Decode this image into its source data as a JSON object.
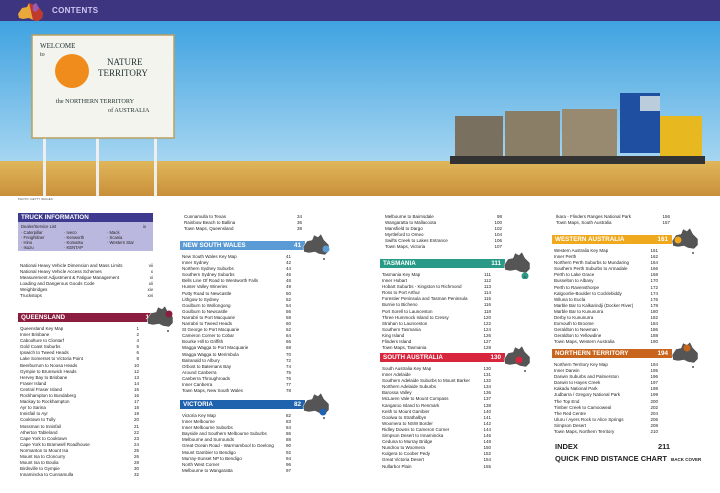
{
  "header": {
    "title": "CONTENTS",
    "bar_color": "#3d3580"
  },
  "photo": {
    "caption": "PHOTO: GETTY IMAGES",
    "sign": {
      "line1": "WELCOME",
      "line2": "to",
      "line3": "NATURE",
      "line4": "TERRITORY",
      "line5": "the NORTHERN TERRITORY",
      "line6": "of AUSTRALIA"
    }
  },
  "truck_info": {
    "title": "TRUCK INFORMATION",
    "color": "#3e3a8f",
    "dealer_label": "Dealer/Service List",
    "dealer_page": "ix",
    "brands": [
      [
        "Caterpillar",
        "Freightliner",
        "Hino",
        "Isuzu"
      ],
      [
        "Iveco",
        "Kenworth",
        "Komatsu",
        "KENTAP"
      ],
      [
        "Mack",
        "Scania",
        "Western Star"
      ]
    ],
    "items": [
      [
        "National Heavy Vehicle Dimension and Mass Limits",
        "vii"
      ],
      [
        "National Heavy Vehicle Access Schemes",
        "x"
      ],
      [
        "Measurement Adjustment & Fatigue Management",
        "xi"
      ],
      [
        "Loading and Dangerous Goods Code",
        "xii"
      ],
      [
        "Weighbridges",
        "xiv"
      ],
      [
        "Truckstops",
        "xvi"
      ]
    ]
  },
  "sections": {
    "qld": {
      "title": "QUEENSLAND",
      "page": "1",
      "color": "#8b1d3f",
      "items": [
        [
          "Queensland Key Map",
          "1"
        ],
        [
          "Inner Brisbane",
          "2"
        ],
        [
          "Caboolture to Clontarf",
          "4"
        ],
        [
          "Gold Coast Suburbs",
          "5"
        ],
        [
          "Ipswich to Tweed Heads",
          "6"
        ],
        [
          "Lake Somerset to Victoria Point",
          "8"
        ],
        [
          "Beerburrum to Noosa Heads",
          "10"
        ],
        [
          "Gympie to Brunswick Heads",
          "12"
        ],
        [
          "Hervey Bay to Brisbane",
          "13"
        ],
        [
          "Fraser Island",
          "14"
        ],
        [
          "Central Fraser Island",
          "15"
        ],
        [
          "Rockhampton to Bundaberg",
          "16"
        ],
        [
          "Mackay to Rockhampton",
          "17"
        ],
        [
          "Ayr to Sarina",
          "18"
        ],
        [
          "Innisfail to Ayr",
          "19"
        ],
        [
          "Cooktown to Tully",
          "20"
        ],
        [
          "Mossman to Innisfail",
          "21"
        ],
        [
          "Atherton Tableland",
          "22"
        ],
        [
          "Cape York to Cooktown",
          "23"
        ],
        [
          "Cape York to Bramwell Roadhouse",
          "24"
        ],
        [
          "Normanton to Mount Isa",
          "25"
        ],
        [
          "Mount Isa to Cloncurry",
          "26"
        ],
        [
          "Mount Isa to Boulia",
          "28"
        ],
        [
          "Birdsville to Gympie",
          "30"
        ],
        [
          "Innamincka to Cunnamulla",
          "32"
        ]
      ]
    },
    "qld_cont": {
      "items": [
        [
          "Cunnamulla to Texas",
          "34"
        ],
        [
          "Rainbow Beach to Ballina",
          "36"
        ],
        [
          "Town Maps, Queensland",
          "38"
        ]
      ]
    },
    "nsw": {
      "title": "NEW SOUTH WALES",
      "page": "41",
      "color": "#5b9bd5",
      "items": [
        [
          "New South Wales Key Map",
          "41"
        ],
        [
          "Inner Sydney",
          "42"
        ],
        [
          "Northern Sydney Suburbs",
          "44"
        ],
        [
          "Southern Sydney Suburbs",
          "46"
        ],
        [
          "Bells Line Of Road to Wentworth Falls",
          "48"
        ],
        [
          "Hunter Valley Wineries",
          "49"
        ],
        [
          "Putty Road to Newcastle",
          "50"
        ],
        [
          "Lithgow to Sydney",
          "52"
        ],
        [
          "Goulburn to Wollongong",
          "54"
        ],
        [
          "Goulburn to Newcastle",
          "56"
        ],
        [
          "Narrabri to Port Macquarie",
          "58"
        ],
        [
          "Narrabri to Tweed Heads",
          "60"
        ],
        [
          "St George to Port Macquarie",
          "62"
        ],
        [
          "Cameron Corner to Cobar",
          "64"
        ],
        [
          "Bourke Hill to Griffith",
          "66"
        ],
        [
          "Wagga Wagga to Port Macquarie",
          "68"
        ],
        [
          "Wagga Wagga to Merimbula",
          "70"
        ],
        [
          "Balranald to Albury",
          "72"
        ],
        [
          "Orbost to Batemans Bay",
          "74"
        ],
        [
          "Around Canberra",
          "75"
        ],
        [
          "Canberra Throughroads",
          "76"
        ],
        [
          "Inner Canberra",
          "77"
        ],
        [
          "Town Maps, New South Wales",
          "78"
        ]
      ]
    },
    "vic": {
      "title": "VICTORIA",
      "page": "82",
      "color": "#1f62ad",
      "items": [
        [
          "Victoria Key Map",
          "82"
        ],
        [
          "Inner Melbourne",
          "83"
        ],
        [
          "Inner Melbourne Suburbs",
          "84"
        ],
        [
          "Bayside and Southern Melbourne Suburbs",
          "86"
        ],
        [
          "Melbourne and Surrounds",
          "88"
        ],
        [
          "Great Ocean Road - Warrnambool to Geelong",
          "90"
        ],
        [
          "Mount Gambier to Bendigo",
          "92"
        ],
        [
          "Murray-Sunset NP to Bendigo",
          "94"
        ],
        [
          "North West Corner",
          "96"
        ],
        [
          "Melbourne to Wangaratta",
          "97"
        ]
      ]
    },
    "vic_cont": {
      "items": [
        [
          "Melbourne to Bairnsdale",
          "98"
        ],
        [
          "Wangaratta to Mallacoota",
          "100"
        ],
        [
          "Mansfield to Dargo",
          "102"
        ],
        [
          "Myrtleford to Omeo",
          "104"
        ],
        [
          "Swifts Creek to Lakes Entrance",
          "106"
        ],
        [
          "Town Maps, Victoria",
          "107"
        ]
      ]
    },
    "tas": {
      "title": "TASMANIA",
      "page": "111",
      "color": "#2a9a88",
      "items": [
        [
          "Tasmania Key Map",
          "111"
        ],
        [
          "Inner Hobart",
          "112"
        ],
        [
          "Hobart Suburbs - Kingston to Richmond",
          "113"
        ],
        [
          "Ross to Port Arthur",
          "114"
        ],
        [
          "Forestier Peninsula and Tasman Peninsula",
          "115"
        ],
        [
          "Burnie to Bicheno",
          "116"
        ],
        [
          "Port Sorell to Launceston",
          "118"
        ],
        [
          "Three Hummock Island to Cressy",
          "120"
        ],
        [
          "Strahan to Launceston",
          "122"
        ],
        [
          "Southern Tasmania",
          "124"
        ],
        [
          "King Island",
          "126"
        ],
        [
          "Flinders Island",
          "127"
        ],
        [
          "Town Maps, Tasmania",
          "128"
        ]
      ]
    },
    "sa": {
      "title": "SOUTH AUSTRALIA",
      "page": "130",
      "color": "#d7263d",
      "items": [
        [
          "South Australia Key Map",
          "130"
        ],
        [
          "Inner Adelaide",
          "131"
        ],
        [
          "Southern Adelaide Suburbs to Mount Barker",
          "132"
        ],
        [
          "Northern Adelaide Suburbs",
          "134"
        ],
        [
          "Barossa Valley",
          "136"
        ],
        [
          "McLaren Vale to Mount Compass",
          "137"
        ],
        [
          "Kangaroo Island to Renmark",
          "138"
        ],
        [
          "Keith to Mount Gambier",
          "140"
        ],
        [
          "Goolwa to Strathalbyn",
          "141"
        ],
        [
          "Woomera to NSW Border",
          "142"
        ],
        [
          "Ridley Downs to Cameron Corner",
          "144"
        ],
        [
          "Simpson Desert to Innamincka",
          "146"
        ],
        [
          "Ceduna to Murray Bridge",
          "148"
        ],
        [
          "Nundroo to Woomera",
          "150"
        ],
        [
          "Kulgera to Coober Pedy",
          "152"
        ],
        [
          "Great Victoria Desert",
          "154"
        ],
        [
          "Nullarbor Plain",
          "155"
        ]
      ]
    },
    "sa_cont": {
      "items": [
        [
          "Ikara - Flinders Ranges National Park",
          "156"
        ],
        [
          "Town Maps, South Australia",
          "157"
        ]
      ]
    },
    "wa": {
      "title": "WESTERN AUSTRALIA",
      "page": "161",
      "color": "#f0a81c",
      "items": [
        [
          "Western Australia Key Map",
          "161"
        ],
        [
          "Inner Perth",
          "162"
        ],
        [
          "Northern Perth Suburbs to Mundaring",
          "164"
        ],
        [
          "Southern Perth Suburbs to Armadale",
          "166"
        ],
        [
          "Perth to Lake Grace",
          "168"
        ],
        [
          "Busselton to Albany",
          "170"
        ],
        [
          "Perth to Ravensthorpe",
          "172"
        ],
        [
          "Kalgoorlie-Boulder to Cocklebiddy",
          "174"
        ],
        [
          "Wiluna to Eucla",
          "176"
        ],
        [
          "Marble Bar to Kalkarindji (Docker River)",
          "178"
        ],
        [
          "Marble Bar to Kununurra",
          "180"
        ],
        [
          "Derby to Kununurra",
          "182"
        ],
        [
          "Exmouth to Broome",
          "184"
        ],
        [
          "Geraldton to Newman",
          "186"
        ],
        [
          "Geraldton to Yellowdine",
          "188"
        ],
        [
          "Town Maps, Western Australia",
          "190"
        ]
      ]
    },
    "nt": {
      "title": "NORTHERN TERRITORY",
      "page": "194",
      "color": "#c8641c",
      "items": [
        [
          "Northern Territory Key Map",
          "194"
        ],
        [
          "Inner Darwin",
          "195"
        ],
        [
          "Darwin Suburbs and Palmerston",
          "196"
        ],
        [
          "Darwin to Hayes Creek",
          "197"
        ],
        [
          "Kakadu National Park",
          "198"
        ],
        [
          "Judbarra / Gregory National Park",
          "199"
        ],
        [
          "The Top End",
          "200"
        ],
        [
          "Timber Creek to Camooweal",
          "202"
        ],
        [
          "The Red Centre",
          "204"
        ],
        [
          "Uluru / Ayers Rock to Alice Springs",
          "206"
        ],
        [
          "Simpson Desert",
          "208"
        ],
        [
          "Town Maps, Northern Territory",
          "210"
        ]
      ]
    }
  },
  "index": {
    "label": "INDEX",
    "page": "211"
  },
  "distance_chart": {
    "label": "QUICK FIND DISTANCE CHART",
    "page": "BACK COVER"
  }
}
